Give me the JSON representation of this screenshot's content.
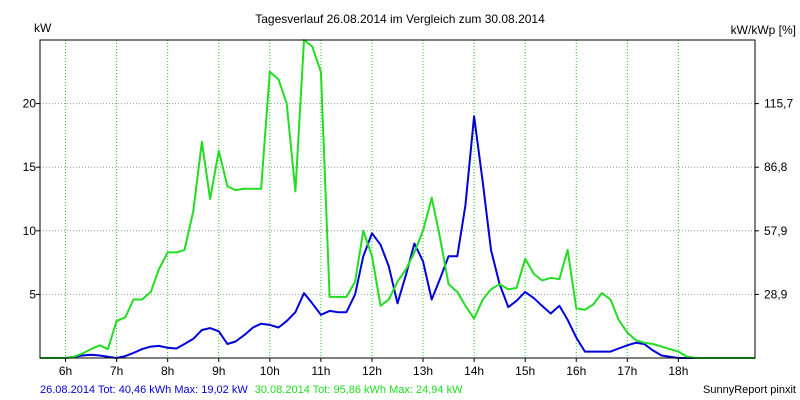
{
  "chart_data": {
    "type": "line",
    "title": "Tagesverlauf 26.08.2014 im Vergleich zum 30.08.2014",
    "ylabel_left": "kW",
    "ylabel_right": "kW/kWp [%]",
    "xlim": [
      5.5,
      19.5
    ],
    "ylim": [
      0,
      25
    ],
    "x_ticks": [
      {
        "value": 6,
        "label": "6h"
      },
      {
        "value": 7,
        "label": "7h"
      },
      {
        "value": 8,
        "label": "8h"
      },
      {
        "value": 9,
        "label": "9h"
      },
      {
        "value": 10,
        "label": "10h"
      },
      {
        "value": 11,
        "label": "11h"
      },
      {
        "value": 12,
        "label": "12h"
      },
      {
        "value": 13,
        "label": "13h"
      },
      {
        "value": 14,
        "label": "14h"
      },
      {
        "value": 15,
        "label": "15h"
      },
      {
        "value": 16,
        "label": "16h"
      },
      {
        "value": 17,
        "label": "17h"
      },
      {
        "value": 18,
        "label": "18h"
      }
    ],
    "y_ticks_left": [
      {
        "value": 5,
        "label": "5"
      },
      {
        "value": 10,
        "label": "10"
      },
      {
        "value": 15,
        "label": "15"
      },
      {
        "value": 20,
        "label": "20"
      }
    ],
    "y_ticks_right": [
      {
        "value": 5,
        "label": "28,9"
      },
      {
        "value": 10,
        "label": "57,9"
      },
      {
        "value": 15,
        "label": "86,8"
      },
      {
        "value": 20,
        "label": "115,7"
      }
    ],
    "grid": true,
    "series": [
      {
        "name": "26.08.2014",
        "color": "#0000dd",
        "points": [
          [
            5.5,
            0
          ],
          [
            5.75,
            0
          ],
          [
            6.0,
            0
          ],
          [
            6.17,
            0.1
          ],
          [
            6.33,
            0.2
          ],
          [
            6.5,
            0.25
          ],
          [
            6.67,
            0.2
          ],
          [
            6.83,
            0.1
          ],
          [
            7.0,
            0
          ],
          [
            7.17,
            0.15
          ],
          [
            7.33,
            0.4
          ],
          [
            7.5,
            0.7
          ],
          [
            7.67,
            0.9
          ],
          [
            7.83,
            0.95
          ],
          [
            8.0,
            0.8
          ],
          [
            8.17,
            0.75
          ],
          [
            8.33,
            1.1
          ],
          [
            8.5,
            1.5
          ],
          [
            8.67,
            2.2
          ],
          [
            8.83,
            2.35
          ],
          [
            9.0,
            2.1
          ],
          [
            9.17,
            1.1
          ],
          [
            9.33,
            1.3
          ],
          [
            9.5,
            1.8
          ],
          [
            9.67,
            2.4
          ],
          [
            9.83,
            2.7
          ],
          [
            10.0,
            2.6
          ],
          [
            10.17,
            2.4
          ],
          [
            10.33,
            2.9
          ],
          [
            10.5,
            3.6
          ],
          [
            10.67,
            5.1
          ],
          [
            10.83,
            4.3
          ],
          [
            11.0,
            3.4
          ],
          [
            11.17,
            3.7
          ],
          [
            11.33,
            3.6
          ],
          [
            11.5,
            3.6
          ],
          [
            11.67,
            5.0
          ],
          [
            11.83,
            8.0
          ],
          [
            12.0,
            9.8
          ],
          [
            12.17,
            8.9
          ],
          [
            12.33,
            7.2
          ],
          [
            12.5,
            4.3
          ],
          [
            12.67,
            6.6
          ],
          [
            12.83,
            9.0
          ],
          [
            13.0,
            7.6
          ],
          [
            13.17,
            4.6
          ],
          [
            13.33,
            6.2
          ],
          [
            13.5,
            8.0
          ],
          [
            13.67,
            8.0
          ],
          [
            13.83,
            12.0
          ],
          [
            14.0,
            19.0
          ],
          [
            14.17,
            13.8
          ],
          [
            14.33,
            8.5
          ],
          [
            14.5,
            5.8
          ],
          [
            14.67,
            4.0
          ],
          [
            14.83,
            4.5
          ],
          [
            15.0,
            5.2
          ],
          [
            15.17,
            4.7
          ],
          [
            15.33,
            4.1
          ],
          [
            15.5,
            3.5
          ],
          [
            15.67,
            4.1
          ],
          [
            15.83,
            3.0
          ],
          [
            16.0,
            1.6
          ],
          [
            16.17,
            0.5
          ],
          [
            16.33,
            0.5
          ],
          [
            16.5,
            0.5
          ],
          [
            16.67,
            0.5
          ],
          [
            16.83,
            0.75
          ],
          [
            17.0,
            1.0
          ],
          [
            17.17,
            1.2
          ],
          [
            17.33,
            1.1
          ],
          [
            17.5,
            0.6
          ],
          [
            17.67,
            0.2
          ],
          [
            17.83,
            0.1
          ],
          [
            18.0,
            0
          ],
          [
            18.5,
            0
          ],
          [
            19.0,
            0
          ],
          [
            19.5,
            0
          ]
        ]
      },
      {
        "name": "30.08.2014",
        "color": "#22dd22",
        "points": [
          [
            5.5,
            0
          ],
          [
            5.75,
            0
          ],
          [
            6.0,
            0
          ],
          [
            6.17,
            0.1
          ],
          [
            6.33,
            0.35
          ],
          [
            6.5,
            0.7
          ],
          [
            6.67,
            1.0
          ],
          [
            6.83,
            0.7
          ],
          [
            7.0,
            2.9
          ],
          [
            7.17,
            3.2
          ],
          [
            7.33,
            4.6
          ],
          [
            7.5,
            4.6
          ],
          [
            7.67,
            5.2
          ],
          [
            7.83,
            7.0
          ],
          [
            8.0,
            8.3
          ],
          [
            8.17,
            8.3
          ],
          [
            8.33,
            8.5
          ],
          [
            8.5,
            11.5
          ],
          [
            8.67,
            17.0
          ],
          [
            8.83,
            12.5
          ],
          [
            9.0,
            16.3
          ],
          [
            9.17,
            13.5
          ],
          [
            9.33,
            13.2
          ],
          [
            9.5,
            13.3
          ],
          [
            9.67,
            13.3
          ],
          [
            9.83,
            13.3
          ],
          [
            10.0,
            22.5
          ],
          [
            10.17,
            21.9
          ],
          [
            10.33,
            20.0
          ],
          [
            10.5,
            13.1
          ],
          [
            10.67,
            25.0
          ],
          [
            10.83,
            24.5
          ],
          [
            11.0,
            22.5
          ],
          [
            11.17,
            4.8
          ],
          [
            11.33,
            4.8
          ],
          [
            11.5,
            4.8
          ],
          [
            11.67,
            6.0
          ],
          [
            11.83,
            10.0
          ],
          [
            12.0,
            8.0
          ],
          [
            12.17,
            4.1
          ],
          [
            12.33,
            4.6
          ],
          [
            12.5,
            6.0
          ],
          [
            12.67,
            7.0
          ],
          [
            12.83,
            8.3
          ],
          [
            13.0,
            10.0
          ],
          [
            13.17,
            12.6
          ],
          [
            13.33,
            9.5
          ],
          [
            13.5,
            5.8
          ],
          [
            13.67,
            5.2
          ],
          [
            13.83,
            4.1
          ],
          [
            14.0,
            3.1
          ],
          [
            14.17,
            4.6
          ],
          [
            14.33,
            5.4
          ],
          [
            14.5,
            5.8
          ],
          [
            14.67,
            5.4
          ],
          [
            14.83,
            5.5
          ],
          [
            15.0,
            7.8
          ],
          [
            15.17,
            6.6
          ],
          [
            15.33,
            6.1
          ],
          [
            15.5,
            6.3
          ],
          [
            15.67,
            6.2
          ],
          [
            15.83,
            8.5
          ],
          [
            16.0,
            3.9
          ],
          [
            16.17,
            3.8
          ],
          [
            16.33,
            4.2
          ],
          [
            16.5,
            5.1
          ],
          [
            16.67,
            4.6
          ],
          [
            16.83,
            3.0
          ],
          [
            17.0,
            2.0
          ],
          [
            17.17,
            1.4
          ],
          [
            17.33,
            1.2
          ],
          [
            17.5,
            1.1
          ],
          [
            17.67,
            0.9
          ],
          [
            17.83,
            0.7
          ],
          [
            18.0,
            0.5
          ],
          [
            18.17,
            0.1
          ],
          [
            18.33,
            0
          ],
          [
            18.5,
            0
          ],
          [
            19.0,
            0
          ],
          [
            19.5,
            0
          ]
        ]
      }
    ],
    "footer": {
      "series1_summary": "26.08.2014 Tot: 40,46 kWh Max: 19,02 kW",
      "series2_summary": "30.08.2014 Tot: 95,86 kWh Max: 24,94 kW",
      "brand": "SunnyReport pinxit"
    },
    "colors": {
      "background": "#ffffff",
      "plot_background": "#ffffff",
      "frame": "#000000",
      "grid_vertical": "#22cc22",
      "grid_horizontal": "#999999",
      "series1": "#0000dd",
      "series2": "#22dd22"
    }
  }
}
